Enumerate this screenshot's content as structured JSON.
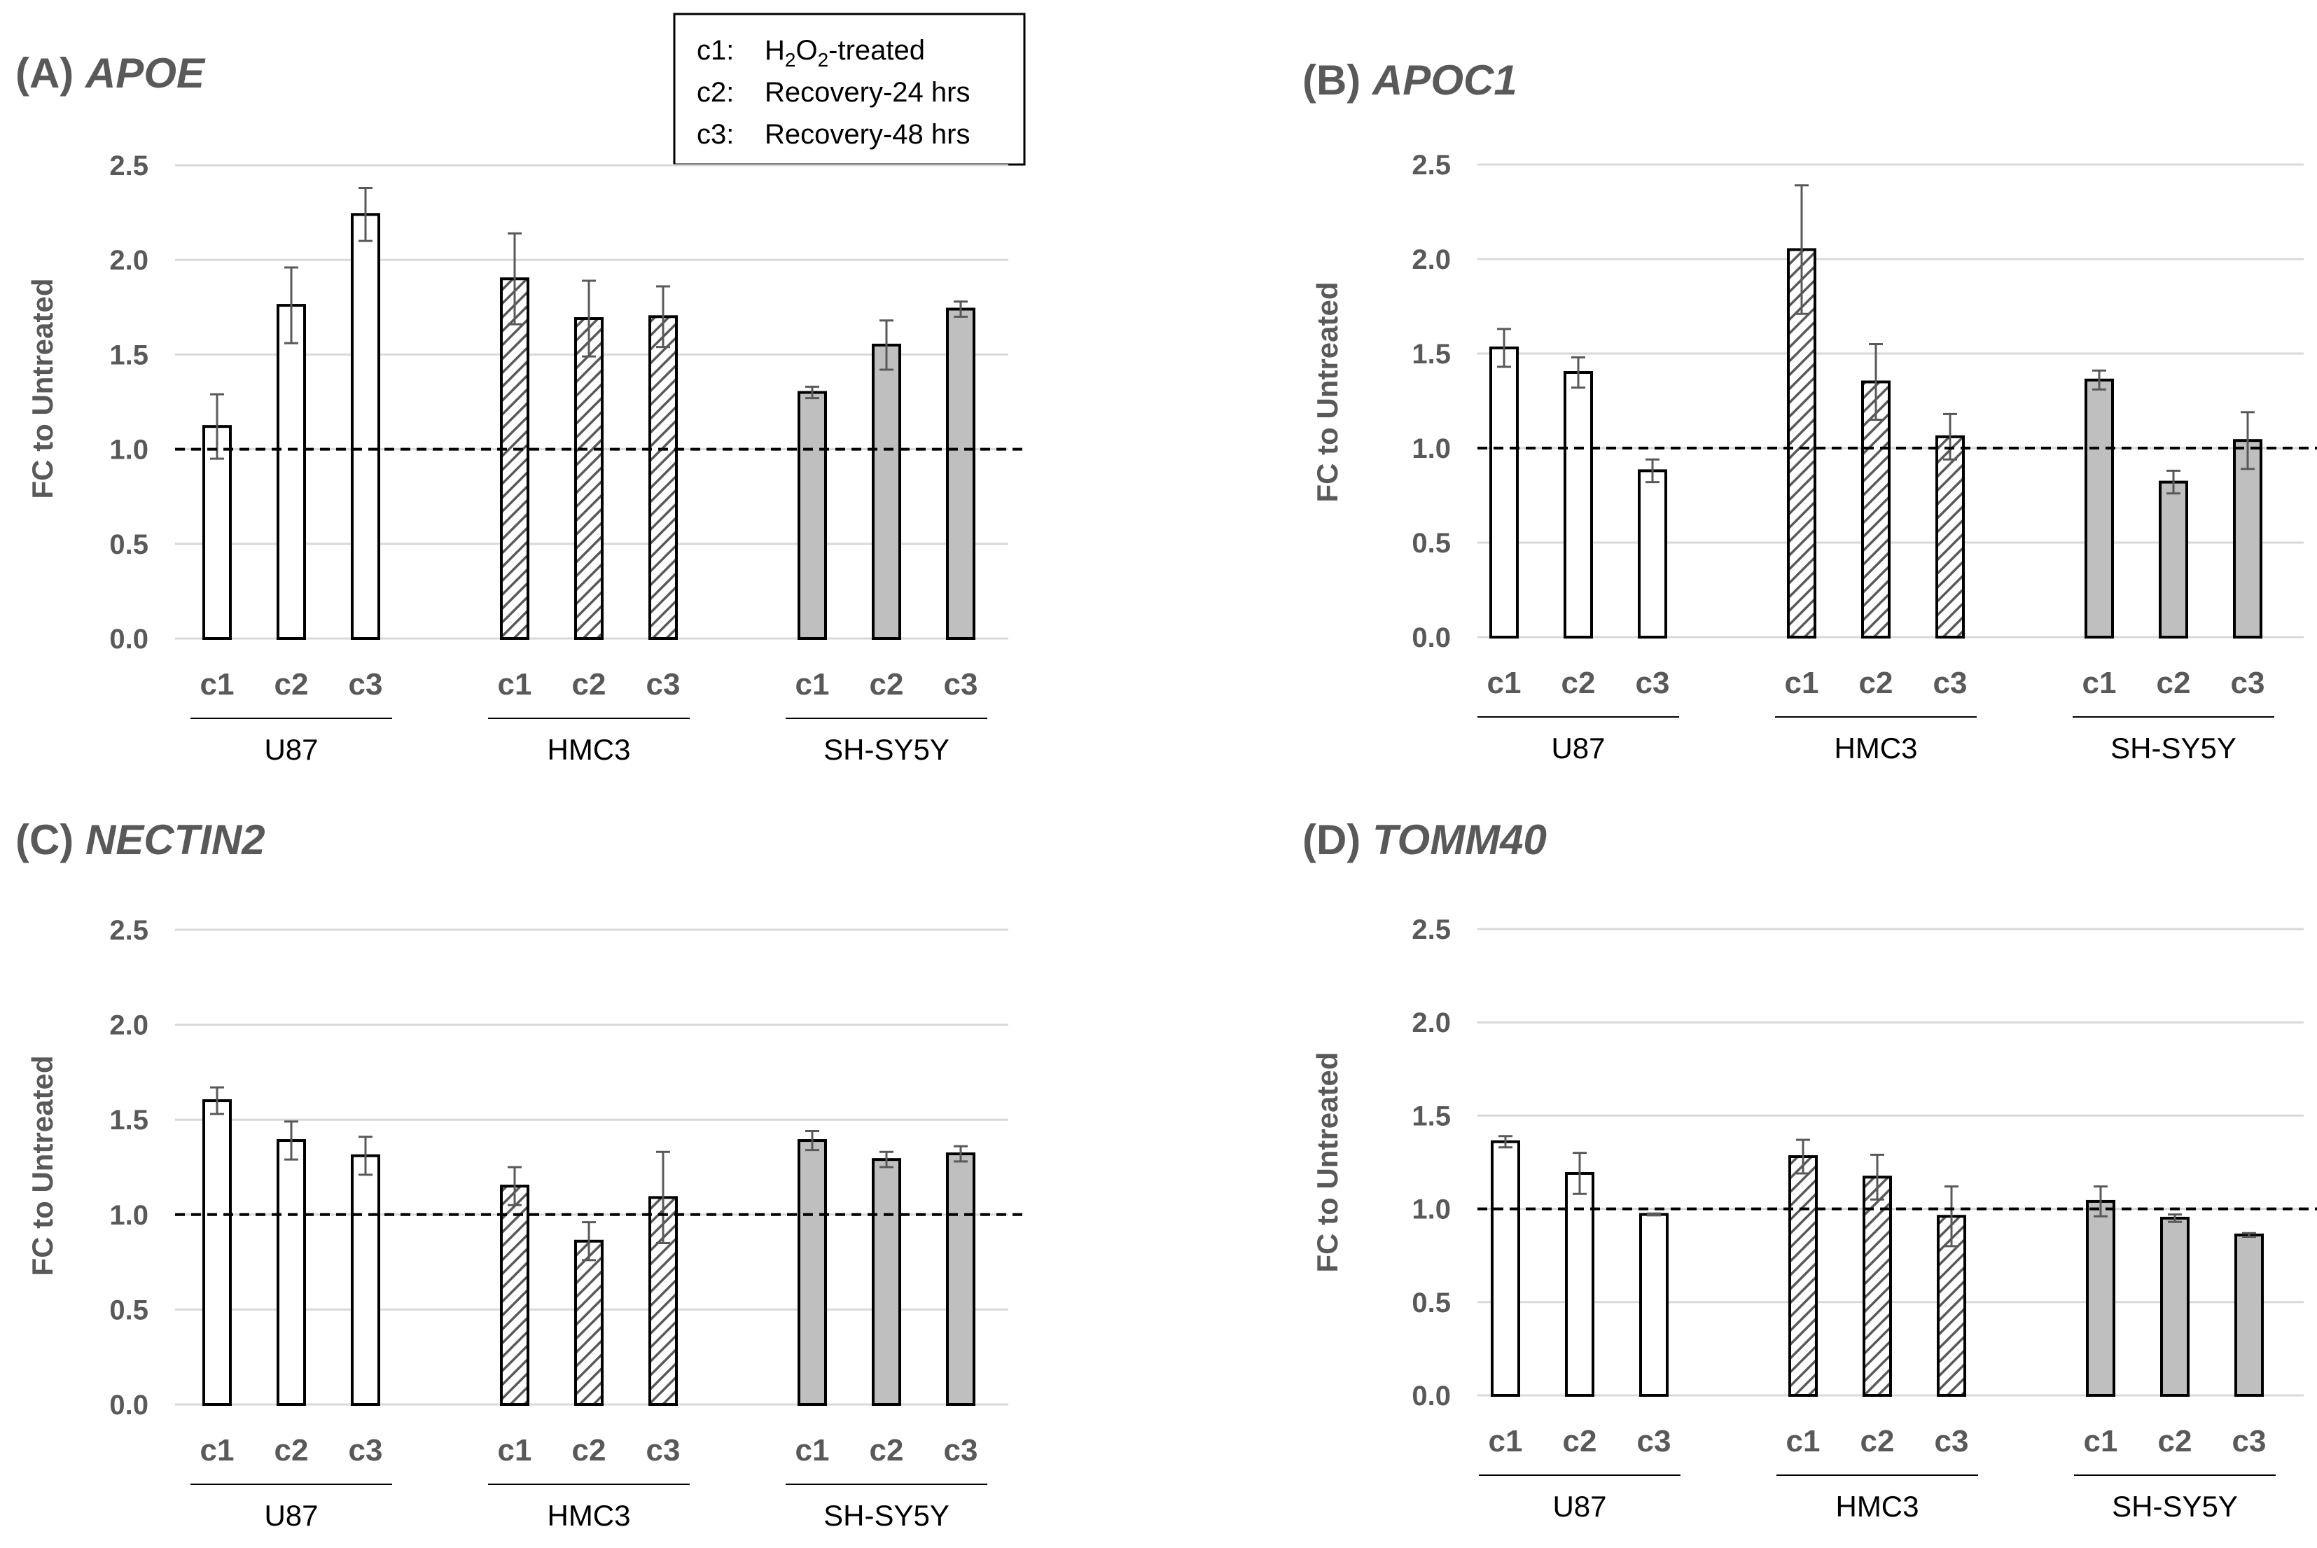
{
  "legend": {
    "lines": [
      {
        "code": "c1:",
        "text": "H",
        "sub1": "2",
        "mid": "O",
        "sub2": "2",
        "tail": "-treated"
      },
      {
        "code": "c2:",
        "text": "Recovery-24 hrs"
      },
      {
        "code": "c3:",
        "text": "Recovery-48 hrs"
      }
    ]
  },
  "colors": {
    "U87": "#ffffff",
    "HMC3": "hatch",
    "SH-SY5Y": "#bfbfbf",
    "bar_border": "#000000",
    "grid": "#d9d9d9",
    "axis_text": "#595959"
  },
  "chart_data": [
    {
      "type": "bar",
      "panel": "(A)",
      "title": "APOE",
      "ylabel": "FC to Untreated",
      "ylim": [
        0,
        2.5
      ],
      "yticks": [
        "0.0",
        "0.5",
        "1.0",
        "1.5",
        "2.0",
        "2.5"
      ],
      "reference_line": 1.0,
      "groups": [
        "U87",
        "HMC3",
        "SH-SY5Y"
      ],
      "categories": [
        "c1",
        "c2",
        "c3"
      ],
      "values": [
        [
          1.12,
          1.76,
          2.24
        ],
        [
          1.9,
          1.69,
          1.7
        ],
        [
          1.3,
          1.55,
          1.74
        ]
      ],
      "errors": [
        [
          0.17,
          0.2,
          0.14
        ],
        [
          0.24,
          0.2,
          0.16
        ],
        [
          0.03,
          0.13,
          0.04
        ]
      ]
    },
    {
      "type": "bar",
      "panel": "(B)",
      "title": "APOC1",
      "ylabel": "FC to Untreated",
      "ylim": [
        0,
        2.5
      ],
      "yticks": [
        "0.0",
        "0.5",
        "1.0",
        "1.5",
        "2.0",
        "2.5"
      ],
      "reference_line": 1.0,
      "groups": [
        "U87",
        "HMC3",
        "SH-SY5Y"
      ],
      "categories": [
        "c1",
        "c2",
        "c3"
      ],
      "values": [
        [
          1.53,
          1.4,
          0.88
        ],
        [
          2.05,
          1.35,
          1.06
        ],
        [
          1.36,
          0.82,
          1.04
        ]
      ],
      "errors": [
        [
          0.1,
          0.08,
          0.06
        ],
        [
          0.34,
          0.2,
          0.12
        ],
        [
          0.05,
          0.06,
          0.15
        ]
      ]
    },
    {
      "type": "bar",
      "panel": "(C)",
      "title": "NECTIN2",
      "ylabel": "FC to Untreated",
      "ylim": [
        0,
        2.5
      ],
      "yticks": [
        "0.0",
        "0.5",
        "1.0",
        "1.5",
        "2.0",
        "2.5"
      ],
      "reference_line": 1.0,
      "groups": [
        "U87",
        "HMC3",
        "SH-SY5Y"
      ],
      "categories": [
        "c1",
        "c2",
        "c3"
      ],
      "values": [
        [
          1.6,
          1.39,
          1.31
        ],
        [
          1.15,
          0.86,
          1.09
        ],
        [
          1.39,
          1.29,
          1.32
        ]
      ],
      "errors": [
        [
          0.07,
          0.1,
          0.1
        ],
        [
          0.1,
          0.1,
          0.24
        ],
        [
          0.05,
          0.04,
          0.04
        ]
      ]
    },
    {
      "type": "bar",
      "panel": "(D)",
      "title": "TOMM40",
      "ylabel": "FC to Untreated",
      "ylim": [
        0,
        2.5
      ],
      "yticks": [
        "0.0",
        "0.5",
        "1.0",
        "1.5",
        "2.0",
        "2.5"
      ],
      "reference_line": 1.0,
      "groups": [
        "U87",
        "HMC3",
        "SH-SY5Y"
      ],
      "categories": [
        "c1",
        "c2",
        "c3"
      ],
      "values": [
        [
          1.36,
          1.19,
          0.97
        ],
        [
          1.28,
          1.17,
          0.96
        ],
        [
          1.04,
          0.95,
          0.86
        ]
      ],
      "errors": [
        [
          0.03,
          0.11,
          0.005
        ],
        [
          0.09,
          0.12,
          0.16
        ],
        [
          0.08,
          0.02,
          0.01
        ]
      ]
    }
  ]
}
